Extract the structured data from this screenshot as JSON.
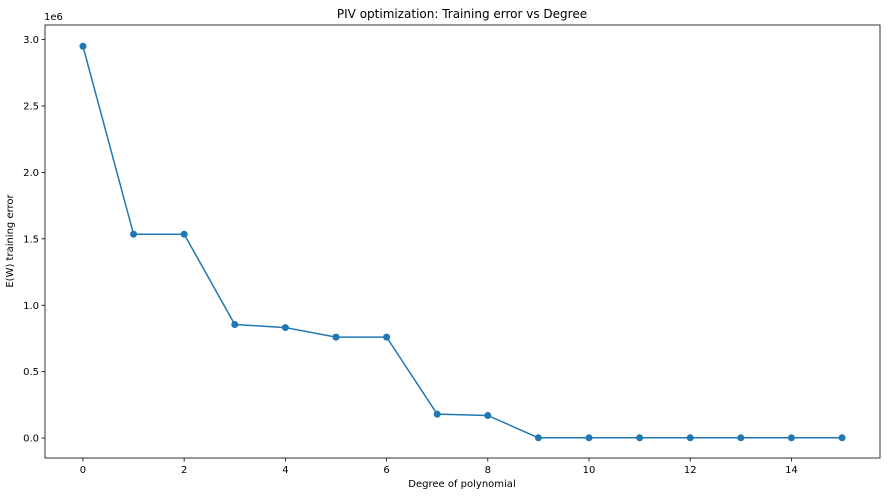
{
  "chart_data": {
    "type": "line",
    "title": "PIV optimization: Training error vs Degree",
    "xlabel": "Degree of polynomial",
    "ylabel": "E(W) training error",
    "y_offset_label": "1e6",
    "x": [
      0,
      1,
      2,
      3,
      4,
      5,
      6,
      7,
      8,
      9,
      10,
      11,
      12,
      13,
      14,
      15
    ],
    "series": [
      {
        "values": [
          2950000,
          1535000,
          1535000,
          855000,
          832000,
          760000,
          760000,
          180000,
          170000,
          2000,
          2000,
          2000,
          2000,
          2000,
          2000,
          2000
        ],
        "color": "#1f77b4",
        "marker": "circle"
      }
    ],
    "xlim": [
      -0.75,
      15.75
    ],
    "ylim": [
      -150000,
      3110000
    ],
    "x_ticks": [
      0,
      2,
      4,
      6,
      8,
      10,
      12,
      14
    ],
    "x_tick_labels": [
      "0",
      "2",
      "4",
      "6",
      "8",
      "10",
      "12",
      "14"
    ],
    "y_ticks": [
      0,
      500000,
      1000000,
      1500000,
      2000000,
      2500000,
      3000000
    ],
    "y_tick_labels": [
      "0.0",
      "0.5",
      "1.0",
      "1.5",
      "2.0",
      "2.5",
      "3.0"
    ],
    "grid": false,
    "legend": "none"
  }
}
